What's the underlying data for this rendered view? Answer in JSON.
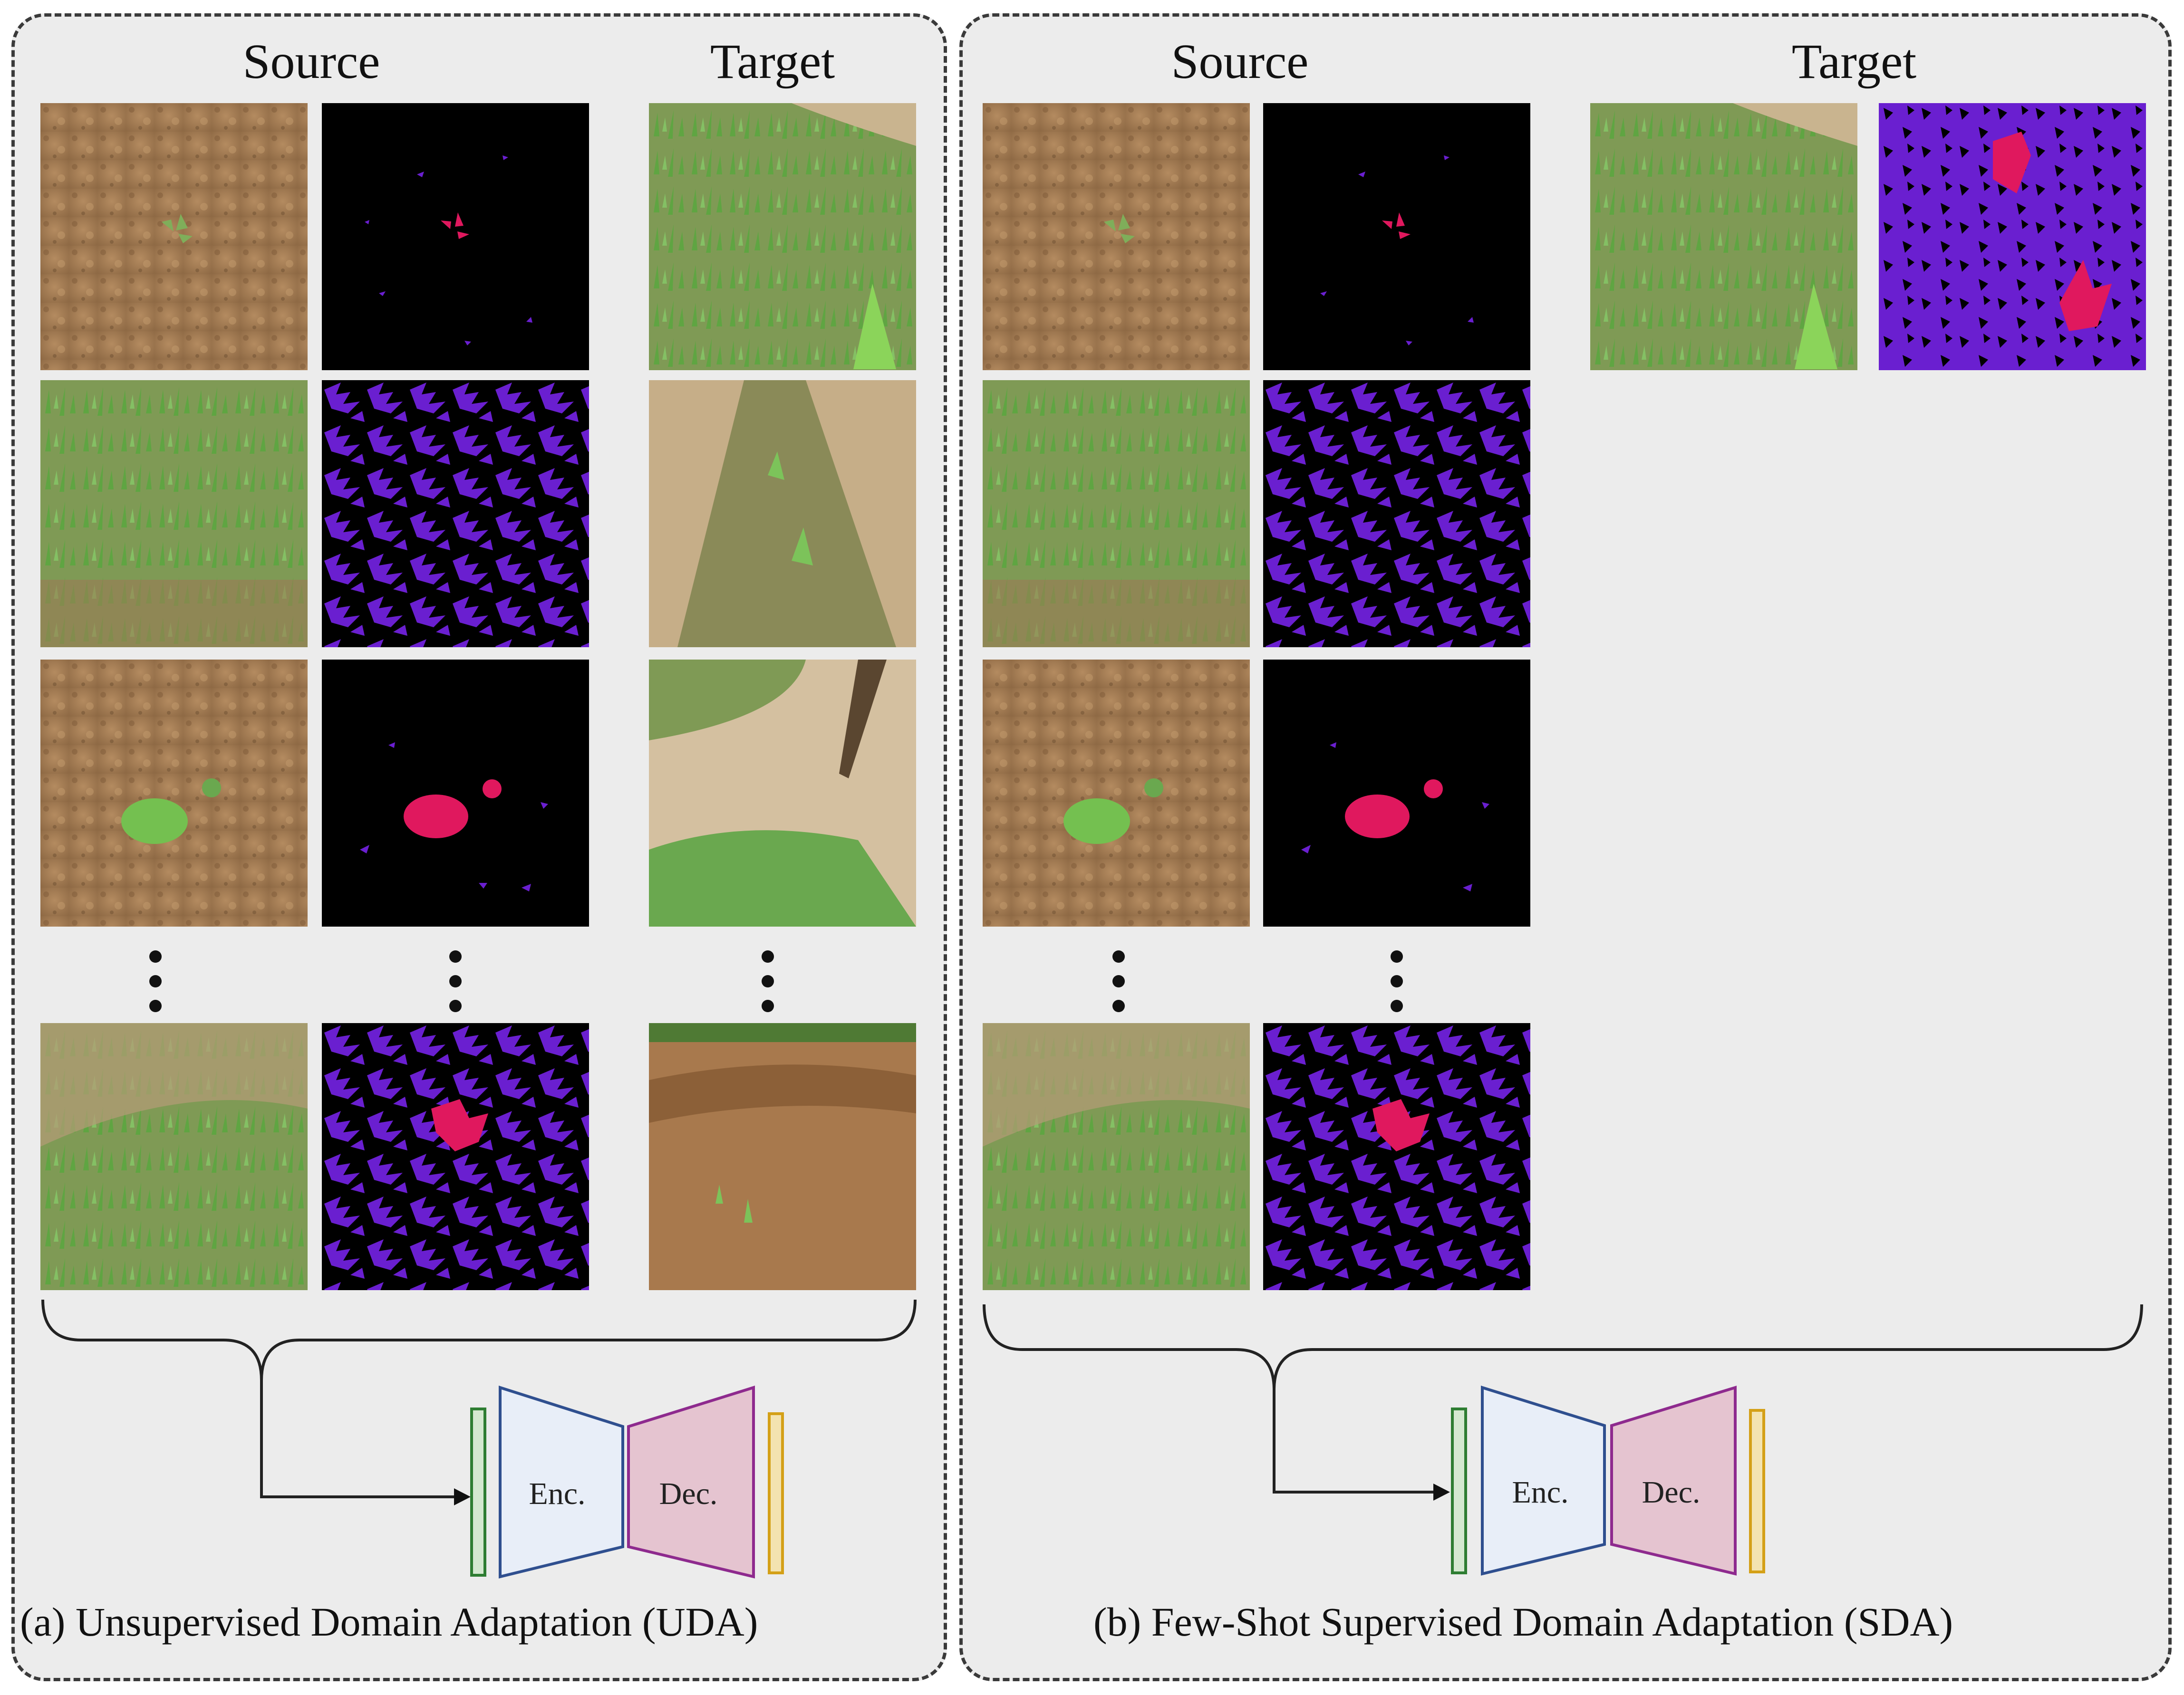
{
  "panels": [
    {
      "id": "uda",
      "source_label": "Source",
      "target_label": "Target",
      "caption": "(a) Unsupervised Domain Adaptation (UDA)",
      "encoder_label": "Enc.",
      "decoder_label": "Dec."
    },
    {
      "id": "sda",
      "source_label": "Source",
      "target_label": "Target",
      "caption": "(b) Few-Shot Supervised Domain Adaptation (SDA)",
      "encoder_label": "Enc.",
      "decoder_label": "Dec."
    }
  ],
  "colors": {
    "panel_bg": "#ececec",
    "soil": "#a27c55",
    "vegetation": "#6aa84f",
    "mask_bg": "#000000",
    "mask_crop": "#6a1fd0",
    "mask_weed": "#e0185e",
    "input_bar": "#2e7d32",
    "encoder_stroke": "#2f4f8f",
    "encoder_fill": "#e8eef8",
    "decoder_stroke": "#8e2a8e",
    "decoder_fill": "#e5c4d0",
    "output_bar": "#d4a017"
  }
}
